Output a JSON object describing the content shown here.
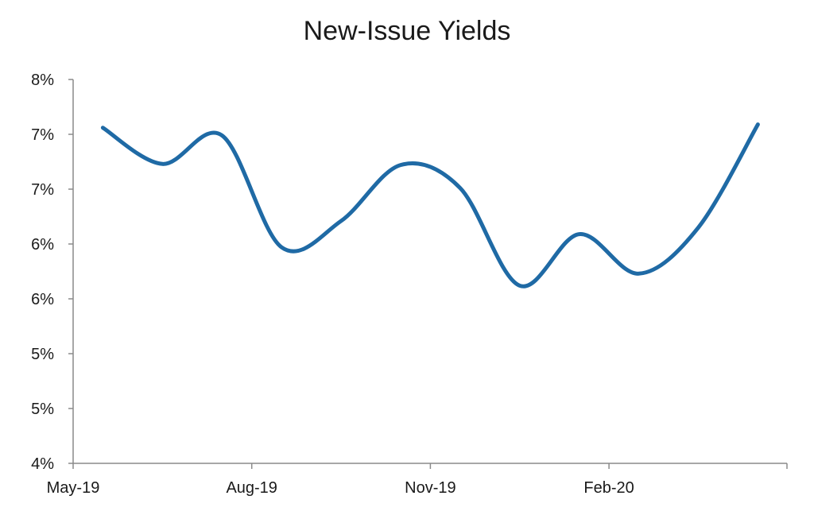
{
  "chart_data": {
    "type": "line",
    "title": "New-Issue Yields",
    "xlabel": "",
    "ylabel": "",
    "x_tick_labels": [
      "May-19",
      "Aug-19",
      "Nov-19",
      "Feb-20"
    ],
    "y_tick_labels": [
      "4%",
      "5%",
      "5%",
      "6%",
      "6%",
      "7%",
      "7%",
      "8%"
    ],
    "ylim": [
      4.0,
      7.5
    ],
    "grid": false,
    "legend": "none",
    "series": [
      {
        "color": "#1f6aa5",
        "x": [
          "May-19",
          "Jun-19",
          "Jul-19",
          "Aug-19",
          "Sep-19",
          "Oct-19",
          "Nov-19",
          "Dec-19",
          "Jan-20",
          "Feb-20",
          "Mar-20",
          "Apr-20"
        ],
        "y": [
          7.06,
          6.73,
          6.99,
          5.97,
          6.21,
          6.72,
          6.51,
          5.62,
          6.09,
          5.73,
          6.15,
          7.09
        ]
      }
    ]
  }
}
